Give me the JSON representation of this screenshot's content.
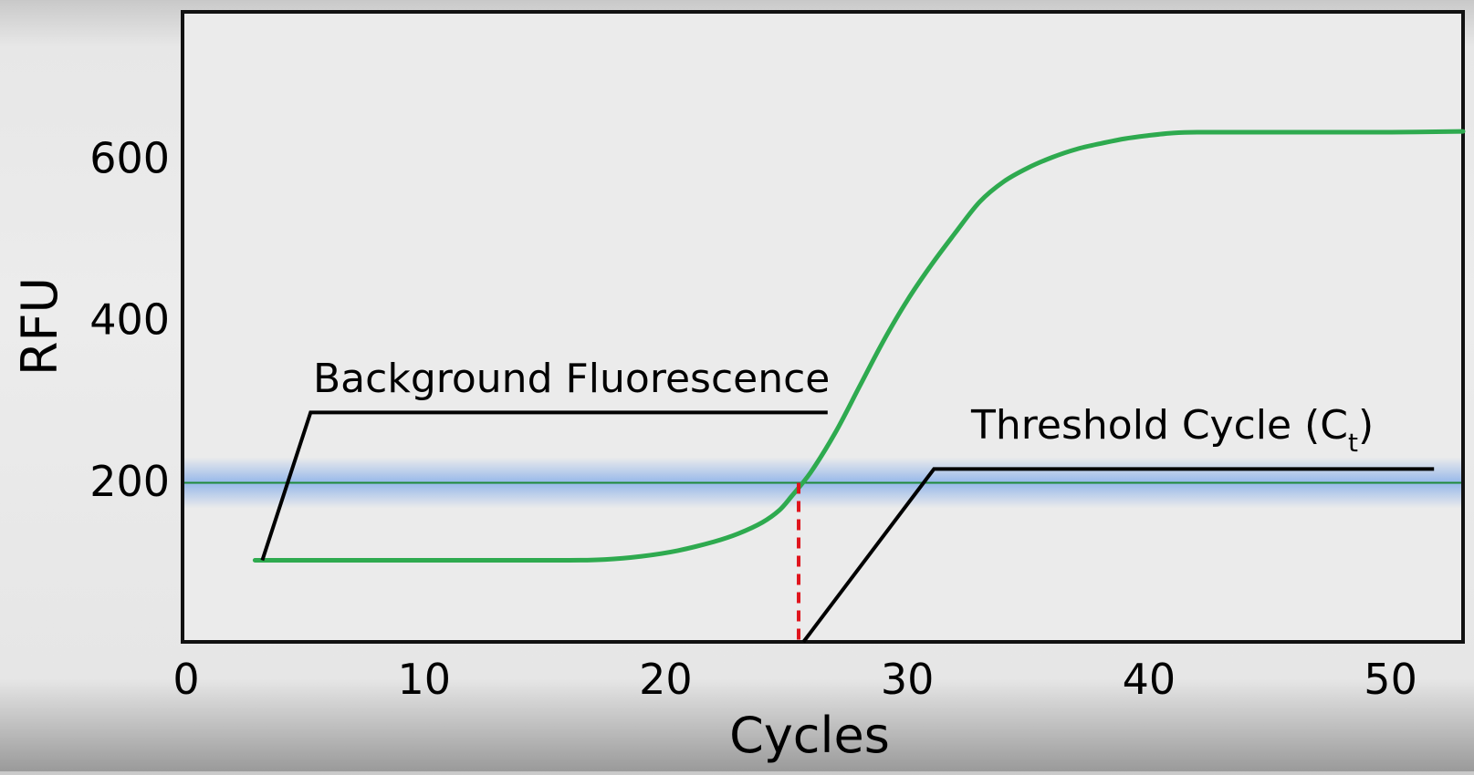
{
  "chart_data": {
    "type": "line",
    "xlabel": "Cycles",
    "ylabel": "RFU",
    "xlim": [
      0,
      53
    ],
    "ylim": [
      0,
      780
    ],
    "x_ticks": [
      0,
      10,
      20,
      30,
      40,
      50
    ],
    "y_ticks": [
      200,
      400,
      600
    ],
    "grid": false,
    "series": [
      {
        "color": "#2eaa4f",
        "x": [
          3,
          8,
          12,
          16,
          17.5,
          19,
          20.5,
          22,
          23,
          24,
          24.7,
          25.2,
          26,
          27,
          28,
          29,
          30,
          31,
          32,
          33,
          34,
          35,
          36,
          37,
          38,
          39,
          40,
          41,
          42,
          44,
          47,
          50,
          53
        ],
        "values": [
          101,
          101,
          101,
          101,
          102,
          106,
          113,
          124,
          134,
          148,
          163,
          180,
          210,
          258,
          315,
          372,
          423,
          467,
          507,
          545,
          570,
          587,
          600,
          610,
          617,
          623,
          627,
          630,
          631,
          631,
          631,
          631,
          632
        ]
      }
    ],
    "threshold": {
      "value": 197,
      "color": "#1f8a3a",
      "glow_color": "#7aa7ea"
    },
    "ct_marker": {
      "x": 25.5,
      "color": "#e0141c"
    },
    "annotations": [
      {
        "id": "background",
        "text": "Background Fluorescence",
        "leader": [
          [
            3.3,
            101
          ],
          [
            5.3,
            284
          ],
          [
            26.7,
            284
          ]
        ]
      },
      {
        "id": "threshold",
        "text": "Threshold Cycle (C",
        "subscript": "t",
        "suffix": ")",
        "leader": [
          [
            25.7,
            0
          ],
          [
            31.1,
            214
          ],
          [
            51.8,
            214
          ]
        ]
      }
    ]
  }
}
